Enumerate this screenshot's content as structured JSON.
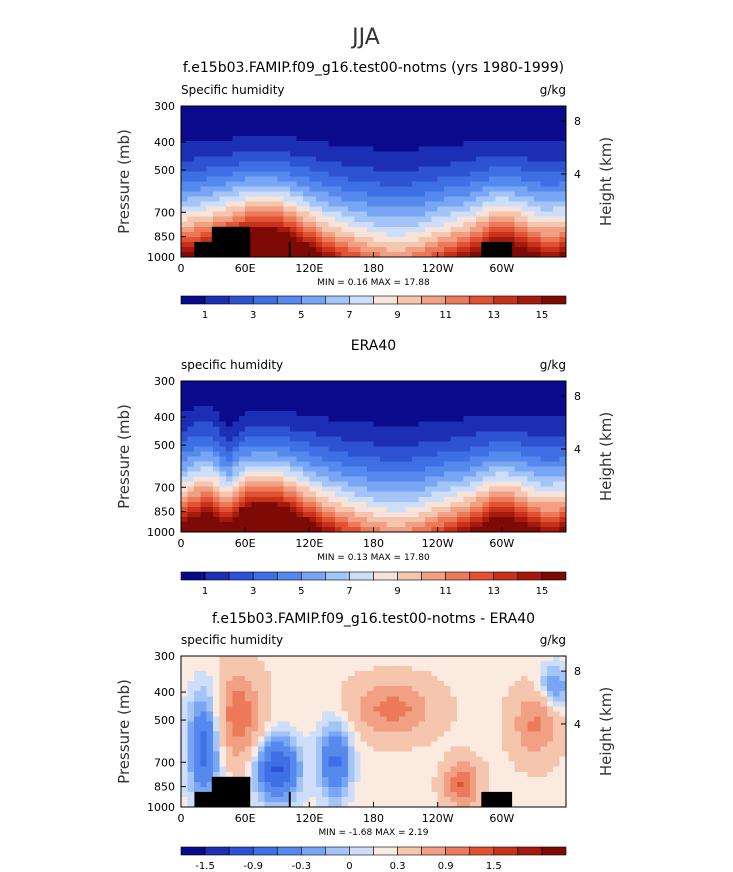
{
  "page_title": "JJA",
  "colors": {
    "seq_palette": [
      "#0a0a8c",
      "#1c2fb4",
      "#2d53d2",
      "#3e6fe4",
      "#5589ee",
      "#78a6f4",
      "#a3c4f7",
      "#cfdef8",
      "#f6e3d9",
      "#f5c5ad",
      "#f2a083",
      "#ec7a59",
      "#e05231",
      "#c8321a",
      "#a51a0c",
      "#7d0a05"
    ],
    "div_palette": [
      "#0a0a8c",
      "#1c2fb4",
      "#2d53d2",
      "#3e6fe4",
      "#5589ee",
      "#78a6f4",
      "#a3c4f7",
      "#cfdef8",
      "#faeadf",
      "#f5c5ad",
      "#f2a083",
      "#ec7a59",
      "#e05231",
      "#c8321a",
      "#a51a0c",
      "#7d0a05"
    ]
  },
  "chart_data": [
    {
      "type": "heatmap",
      "title": "f.e15b03.FAMIP.f09_g16.test00-notms (yrs 1980-1999)",
      "left_label": "Specific humidity",
      "right_label": "g/kg",
      "ylabel": "Pressure (mb)",
      "ylabel_right": "Height (km)",
      "x_ticks": [
        "0",
        "60E",
        "120E",
        "180",
        "120W",
        "60W"
      ],
      "y_ticks": [
        "300",
        "400",
        "500",
        "700",
        "850",
        "1000"
      ],
      "y_ticks_right": [
        "8",
        "4"
      ],
      "stats": "MIN =    0.16   MAX =   17.88",
      "colorbar_labels": [
        "1",
        "3",
        "5",
        "7",
        "9",
        "11",
        "13",
        "15"
      ],
      "field": "model",
      "palette": "seq"
    },
    {
      "type": "heatmap",
      "title": "ERA40",
      "left_label": "specific humidity",
      "right_label": "g/kg",
      "ylabel": "Pressure (mb)",
      "ylabel_right": "Height (km)",
      "x_ticks": [
        "0",
        "60E",
        "120E",
        "180",
        "120W",
        "60W"
      ],
      "y_ticks": [
        "300",
        "400",
        "500",
        "700",
        "850",
        "1000"
      ],
      "y_ticks_right": [
        "8",
        "4"
      ],
      "stats": "MIN =    0.13   MAX =   17.80",
      "colorbar_labels": [
        "1",
        "3",
        "5",
        "7",
        "9",
        "11",
        "13",
        "15"
      ],
      "field": "obs",
      "palette": "seq"
    },
    {
      "type": "heatmap",
      "title": "f.e15b03.FAMIP.f09_g16.test00-notms - ERA40",
      "left_label": "specific humidity",
      "right_label": "g/kg",
      "ylabel": "Pressure (mb)",
      "ylabel_right": "Height (km)",
      "x_ticks": [
        "0",
        "60E",
        "120E",
        "180",
        "120W",
        "60W"
      ],
      "y_ticks": [
        "300",
        "400",
        "500",
        "700",
        "850",
        "1000"
      ],
      "y_ticks_right": [
        "8",
        "4"
      ],
      "stats": "MIN =   -1.68   MAX =    2.19",
      "colorbar_labels": [
        "-1.5",
        "-0.9",
        "-0.3",
        "0",
        "0.3",
        "0.9",
        "1.5"
      ],
      "field": "diff",
      "palette": "div"
    }
  ]
}
